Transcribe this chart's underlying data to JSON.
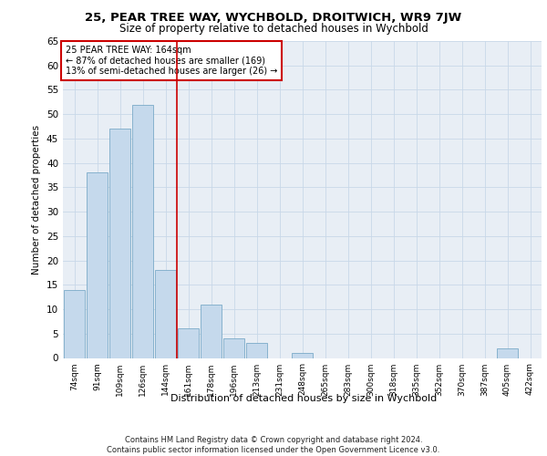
{
  "title": "25, PEAR TREE WAY, WYCHBOLD, DROITWICH, WR9 7JW",
  "subtitle": "Size of property relative to detached houses in Wychbold",
  "xlabel": "Distribution of detached houses by size in Wychbold",
  "ylabel": "Number of detached properties",
  "categories": [
    "74sqm",
    "91sqm",
    "109sqm",
    "126sqm",
    "144sqm",
    "161sqm",
    "178sqm",
    "196sqm",
    "213sqm",
    "231sqm",
    "248sqm",
    "265sqm",
    "283sqm",
    "300sqm",
    "318sqm",
    "335sqm",
    "352sqm",
    "370sqm",
    "387sqm",
    "405sqm",
    "422sqm"
  ],
  "values": [
    14,
    38,
    47,
    52,
    18,
    6,
    11,
    4,
    3,
    0,
    1,
    0,
    0,
    0,
    0,
    0,
    0,
    0,
    0,
    2,
    0
  ],
  "bar_color": "#c5d9ec",
  "bar_edgecolor": "#7aaac8",
  "bar_linewidth": 0.6,
  "vline_x": 4.5,
  "vline_color": "#cc0000",
  "vline_linewidth": 1.2,
  "annotation_text": "25 PEAR TREE WAY: 164sqm\n← 87% of detached houses are smaller (169)\n13% of semi-detached houses are larger (26) →",
  "annotation_box_edgecolor": "#cc0000",
  "annotation_box_facecolor": "white",
  "ylim": [
    0,
    65
  ],
  "yticks": [
    0,
    5,
    10,
    15,
    20,
    25,
    30,
    35,
    40,
    45,
    50,
    55,
    60,
    65
  ],
  "grid_color": "#c8d8e8",
  "bg_color": "#e8eef5",
  "footer": "Contains HM Land Registry data © Crown copyright and database right 2024.\nContains public sector information licensed under the Open Government Licence v3.0."
}
